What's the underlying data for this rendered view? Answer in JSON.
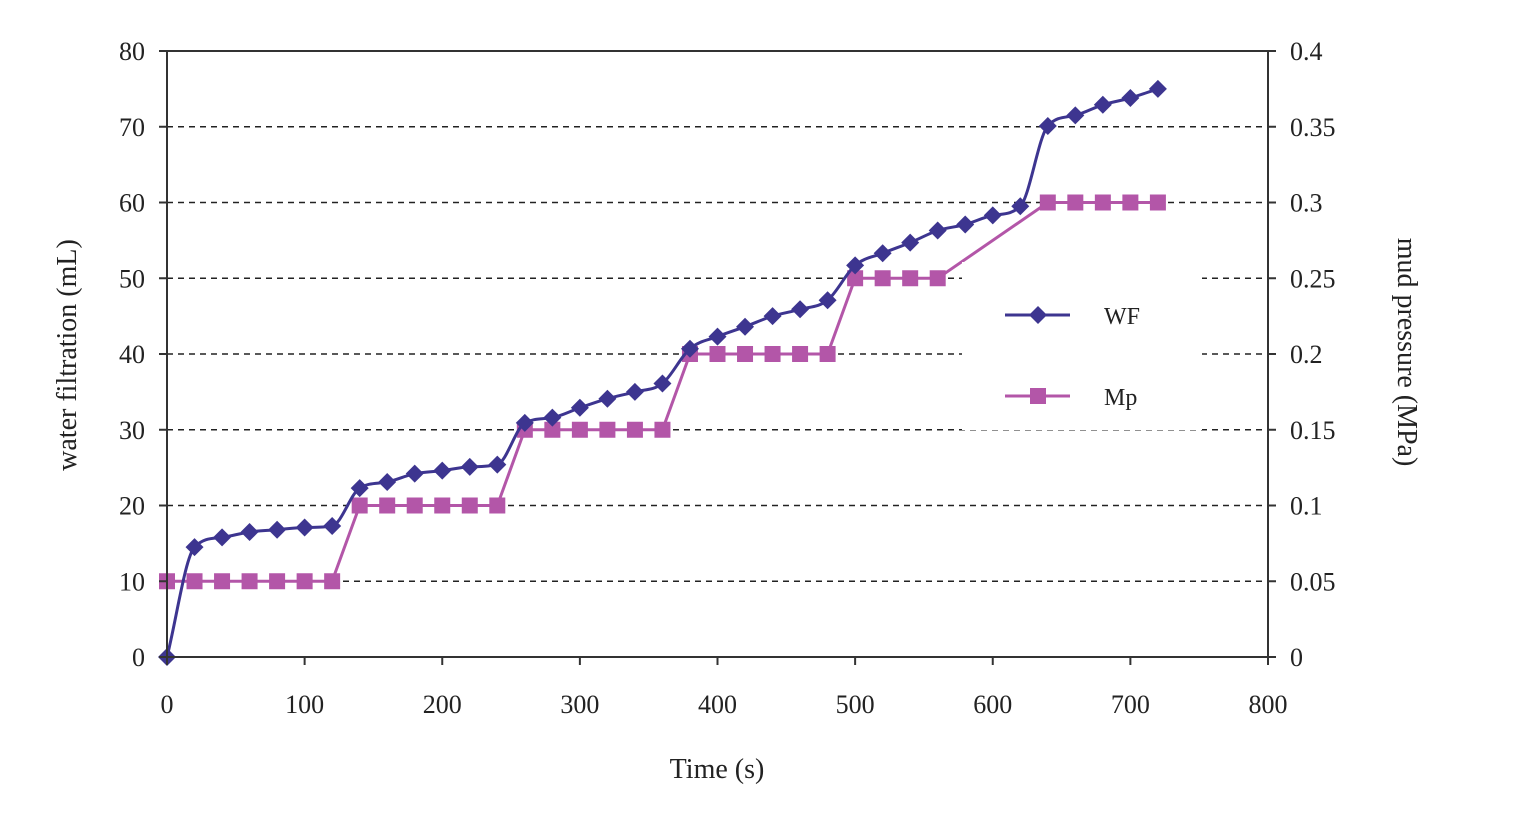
{
  "chart_data": {
    "type": "line",
    "title": "",
    "xlabel": "Time (s)",
    "ylabel": "water filtration (mL)",
    "y2label": "mud pressure (MPa)",
    "xlim": [
      0,
      800
    ],
    "ylim": [
      0,
      80
    ],
    "y2lim": [
      0,
      0.4
    ],
    "x_ticks": [
      "0",
      "100",
      "200",
      "300",
      "400",
      "500",
      "600",
      "700",
      "800"
    ],
    "y_ticks": [
      "0",
      "10",
      "20",
      "30",
      "40",
      "50",
      "60",
      "70",
      "80"
    ],
    "y2_ticks": [
      "0",
      "0.05",
      "0.1",
      "0.15",
      "0.2",
      "0.25",
      "0.3",
      "0.35",
      "0.4"
    ],
    "grid": "dashed horizontal",
    "legend_position": "right",
    "series": [
      {
        "name": "WF",
        "axis": "left",
        "color": "#3d3590",
        "marker": "diamond",
        "x": [
          0,
          20,
          40,
          60,
          80,
          100,
          120,
          140,
          160,
          180,
          200,
          220,
          240,
          260,
          280,
          300,
          320,
          340,
          360,
          380,
          400,
          420,
          440,
          460,
          480,
          500,
          520,
          540,
          560,
          580,
          600,
          620,
          640,
          660,
          680,
          700,
          720
        ],
        "values": [
          0,
          14.5,
          15.8,
          16.5,
          16.8,
          17.1,
          17.3,
          22.3,
          23.1,
          24.2,
          24.6,
          25.1,
          25.4,
          30.9,
          31.6,
          32.9,
          34.1,
          35.0,
          36.1,
          40.7,
          42.3,
          43.6,
          45.0,
          45.9,
          47.1,
          51.7,
          53.3,
          54.7,
          56.3,
          57.1,
          58.3,
          59.5,
          70.1,
          71.5,
          72.9,
          73.8,
          75.0
        ]
      },
      {
        "name": "Mp",
        "axis": "right",
        "color": "#b356a8",
        "marker": "square",
        "x": [
          0,
          20,
          40,
          60,
          80,
          100,
          120,
          140,
          160,
          180,
          200,
          220,
          240,
          260,
          280,
          300,
          320,
          340,
          360,
          380,
          400,
          420,
          440,
          460,
          480,
          500,
          520,
          540,
          560,
          640,
          660,
          680,
          700,
          720
        ],
        "values": [
          0.05,
          0.05,
          0.05,
          0.05,
          0.05,
          0.05,
          0.05,
          0.1,
          0.1,
          0.1,
          0.1,
          0.1,
          0.1,
          0.15,
          0.15,
          0.15,
          0.15,
          0.15,
          0.15,
          0.2,
          0.2,
          0.2,
          0.2,
          0.2,
          0.2,
          0.25,
          0.25,
          0.25,
          0.25,
          0.3,
          0.3,
          0.3,
          0.3,
          0.3
        ]
      }
    ]
  }
}
